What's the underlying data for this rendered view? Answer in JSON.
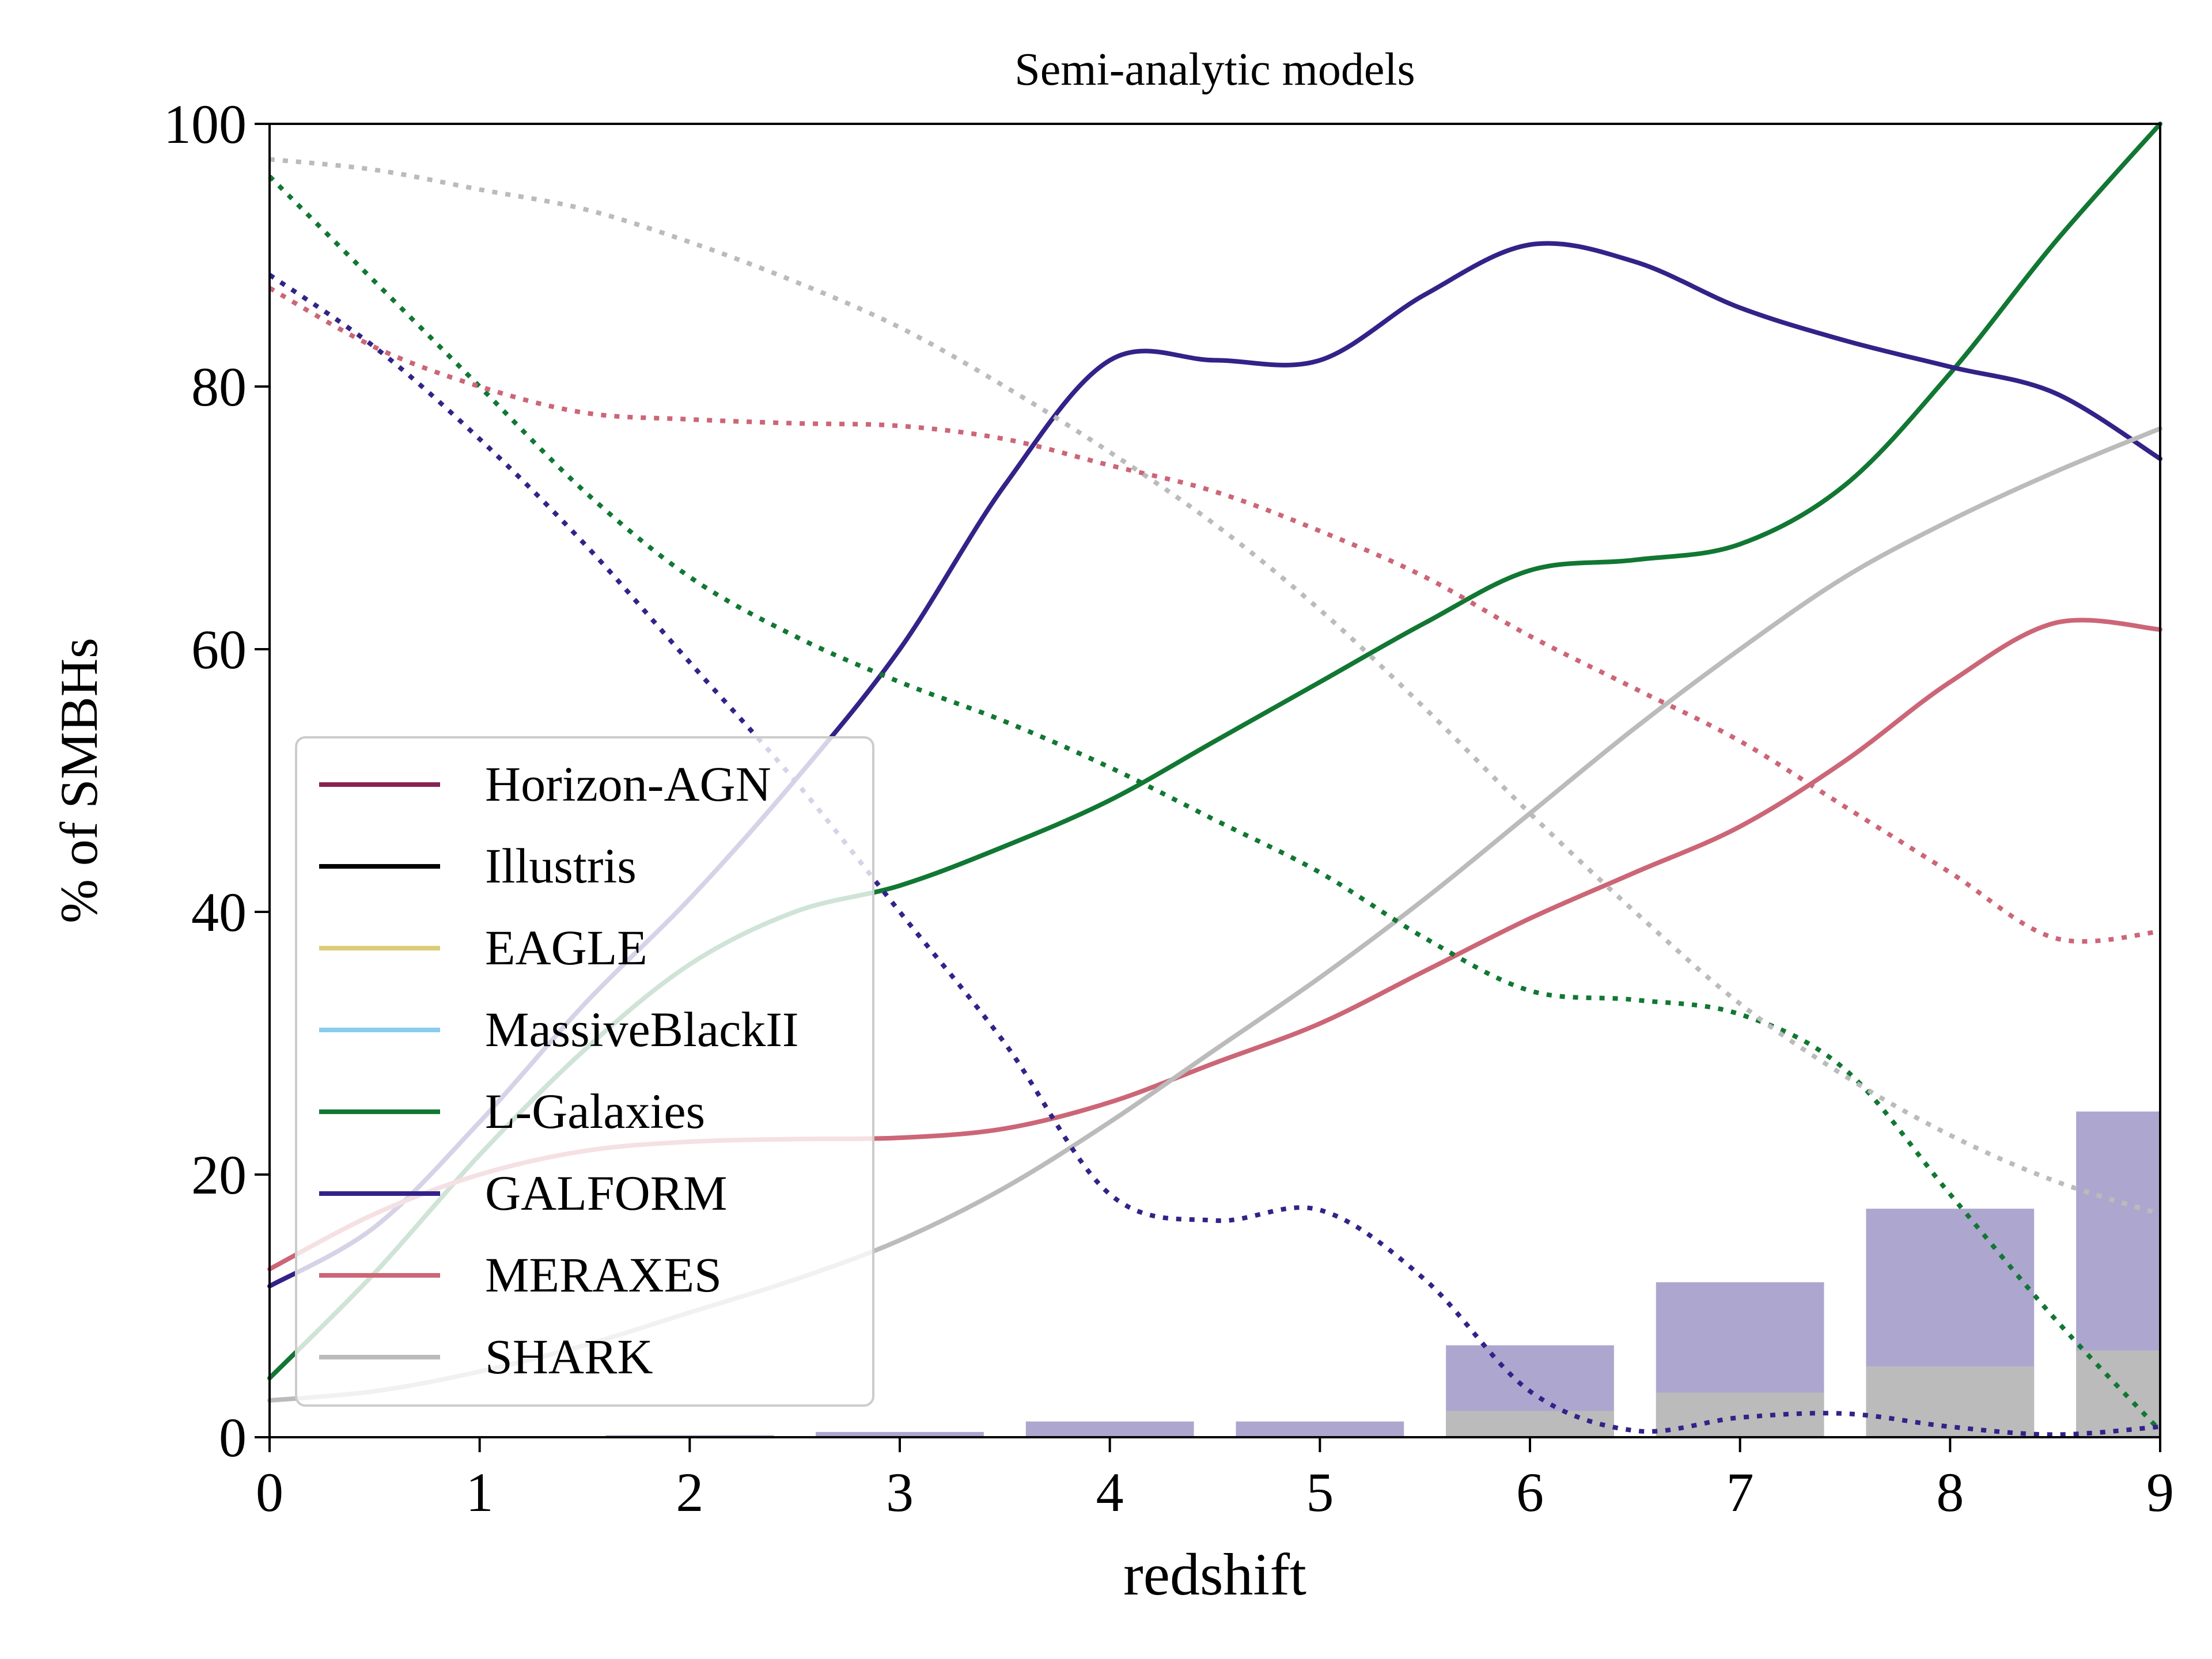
{
  "chart_data": {
    "type": "line",
    "title": "Semi-analytic models",
    "xlabel": "redshift",
    "ylabel": "% of SMBHs",
    "xlim": [
      0,
      9
    ],
    "ylim": [
      0,
      100
    ],
    "xticks": [
      0,
      1,
      2,
      3,
      4,
      5,
      6,
      7,
      8,
      9
    ],
    "yticks": [
      0,
      20,
      40,
      60,
      80,
      100
    ],
    "grid": false,
    "legend_position": "center-left",
    "legend": [
      {
        "name": "Horizon-AGN",
        "color": "#882255"
      },
      {
        "name": "Illustris",
        "color": "#000000"
      },
      {
        "name": "EAGLE",
        "color": "#DDCC77"
      },
      {
        "name": "MassiveBlackII",
        "color": "#88CCEE"
      },
      {
        "name": "L-Galaxies",
        "color": "#117733"
      },
      {
        "name": "GALFORM",
        "color": "#332288"
      },
      {
        "name": "MERAXES",
        "color": "#CC6677"
      },
      {
        "name": "SHARK",
        "color": "#BBBBBB"
      }
    ],
    "x": [
      0,
      0.5,
      1,
      1.5,
      2,
      2.5,
      3,
      3.5,
      4,
      4.5,
      5,
      5.5,
      6,
      6.5,
      7,
      7.5,
      8,
      8.5,
      9
    ],
    "series": [
      {
        "name": "L-Galaxies",
        "style": "solid",
        "color": "#117733",
        "values": [
          4.5,
          12.5,
          21.5,
          29.5,
          36,
          40,
          42,
          45,
          48.5,
          53,
          57.5,
          62,
          66,
          66.8,
          68,
          72.5,
          81,
          91,
          100
        ]
      },
      {
        "name": "GALFORM",
        "style": "solid",
        "color": "#332288",
        "values": [
          11.5,
          16,
          24,
          33,
          41,
          50,
          60,
          72.5,
          82,
          82,
          82,
          87,
          90.8,
          89.5,
          86,
          83.5,
          81.5,
          79.5,
          74.5
        ]
      },
      {
        "name": "MERAXES",
        "style": "solid",
        "color": "#CC6677",
        "values": [
          12.8,
          17,
          20,
          21.8,
          22.5,
          22.7,
          22.8,
          23.5,
          25.5,
          28.5,
          31.5,
          35.5,
          39.5,
          43,
          46.5,
          51.5,
          57.5,
          62,
          61.5
        ]
      },
      {
        "name": "SHARK",
        "style": "solid",
        "color": "#BBBBBB",
        "values": [
          2.8,
          3.5,
          5,
          7,
          9.5,
          12,
          15,
          19,
          24,
          29.5,
          35,
          41,
          47.5,
          54,
          60,
          65.5,
          69.8,
          73.5,
          76.8
        ]
      },
      {
        "name": "L-Galaxies",
        "style": "dotted",
        "color": "#117733",
        "values": [
          96,
          88,
          80,
          72,
          65.5,
          61,
          57.5,
          54.5,
          51,
          47,
          43,
          38,
          34,
          33.3,
          32.2,
          28,
          18.5,
          9,
          0.5
        ]
      },
      {
        "name": "GALFORM",
        "style": "dotted",
        "color": "#332288",
        "values": [
          88.5,
          83,
          76,
          68,
          59,
          50,
          40,
          30,
          18.5,
          16.5,
          17.3,
          12,
          3.5,
          0.5,
          1.5,
          1.8,
          0.8,
          0.2,
          0.8
        ]
      },
      {
        "name": "MERAXES",
        "style": "dotted",
        "color": "#CC6677",
        "values": [
          87.5,
          83,
          80,
          78,
          77.5,
          77.2,
          77,
          76,
          74,
          72,
          69,
          65.5,
          61,
          57,
          53,
          48,
          43,
          38,
          38.5
        ]
      },
      {
        "name": "SHARK",
        "style": "dotted",
        "color": "#BBBBBB",
        "values": [
          97.3,
          96.5,
          95,
          93.5,
          91,
          88,
          84.5,
          80,
          75,
          69.5,
          63,
          55.5,
          47.5,
          40,
          33,
          27.5,
          23,
          19.5,
          17
        ]
      }
    ],
    "bars": {
      "x": [
        1,
        2,
        3,
        4,
        5,
        6,
        7,
        8,
        9
      ],
      "width": 0.8,
      "series": [
        {
          "name": "GALFORM",
          "color": "#332288",
          "opacity": 0.4,
          "values": [
            0,
            0.15,
            0.4,
            1.2,
            1.2,
            7,
            11.8,
            17.4,
            24.8
          ]
        },
        {
          "name": "SHARK",
          "color": "#BBBBBB",
          "opacity": 1.0,
          "values": [
            0,
            0,
            0,
            0,
            0,
            2,
            3.4,
            5.4,
            6.6
          ]
        }
      ]
    }
  }
}
